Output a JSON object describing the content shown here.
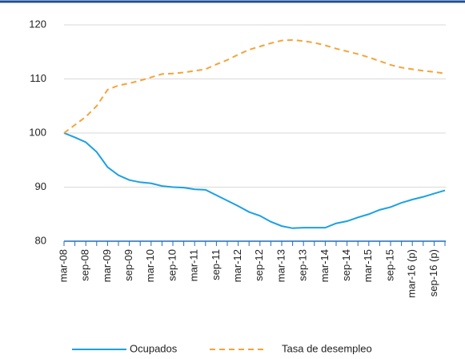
{
  "chart_data": {
    "type": "line",
    "categories": [
      "mar-08",
      null,
      "sep-08",
      null,
      "mar-09",
      null,
      "sep-09",
      null,
      "mar-10",
      null,
      "sep-10",
      null,
      "mar-11",
      null,
      "sep-11",
      null,
      "mar-12",
      null,
      "sep-12",
      null,
      "mar-13",
      null,
      "sep-13",
      null,
      "mar-14",
      null,
      "sep-14",
      null,
      "mar-15",
      null,
      "sep-15",
      null,
      "mar-16 (p)",
      null,
      "sep-16 (p)",
      null
    ],
    "series": [
      {
        "name": "Ocupados",
        "color": "#1ba1e2",
        "dash": false,
        "values": [
          100,
          99.2,
          98.3,
          96.5,
          93.7,
          92.2,
          91.3,
          90.9,
          90.7,
          90.2,
          90.0,
          89.9,
          89.6,
          89.5,
          88.5,
          87.5,
          86.5,
          85.4,
          84.7,
          83.6,
          82.8,
          82.4,
          82.5,
          82.5,
          82.5,
          83.3,
          83.7,
          84.4,
          85.0,
          85.8,
          86.3,
          87.1,
          87.7,
          88.2,
          88.8,
          89.4
        ]
      },
      {
        "name": "Tasa de desempleo",
        "color": "#f5a339",
        "dash": true,
        "values": [
          100,
          101.5,
          103,
          105,
          108,
          108.8,
          109.2,
          109.7,
          110.3,
          110.9,
          111,
          111.2,
          111.5,
          111.8,
          112.7,
          113.5,
          114.5,
          115.4,
          116,
          116.6,
          117.1,
          117.2,
          117,
          116.7,
          116.2,
          115.6,
          115.1,
          114.6,
          114,
          113.3,
          112.6,
          112.1,
          111.8,
          111.5,
          111.3,
          111
        ]
      }
    ],
    "ylim": [
      80,
      120
    ],
    "yticks": [
      80,
      90,
      100,
      110,
      120
    ],
    "grid": true,
    "legend": "bottom"
  }
}
